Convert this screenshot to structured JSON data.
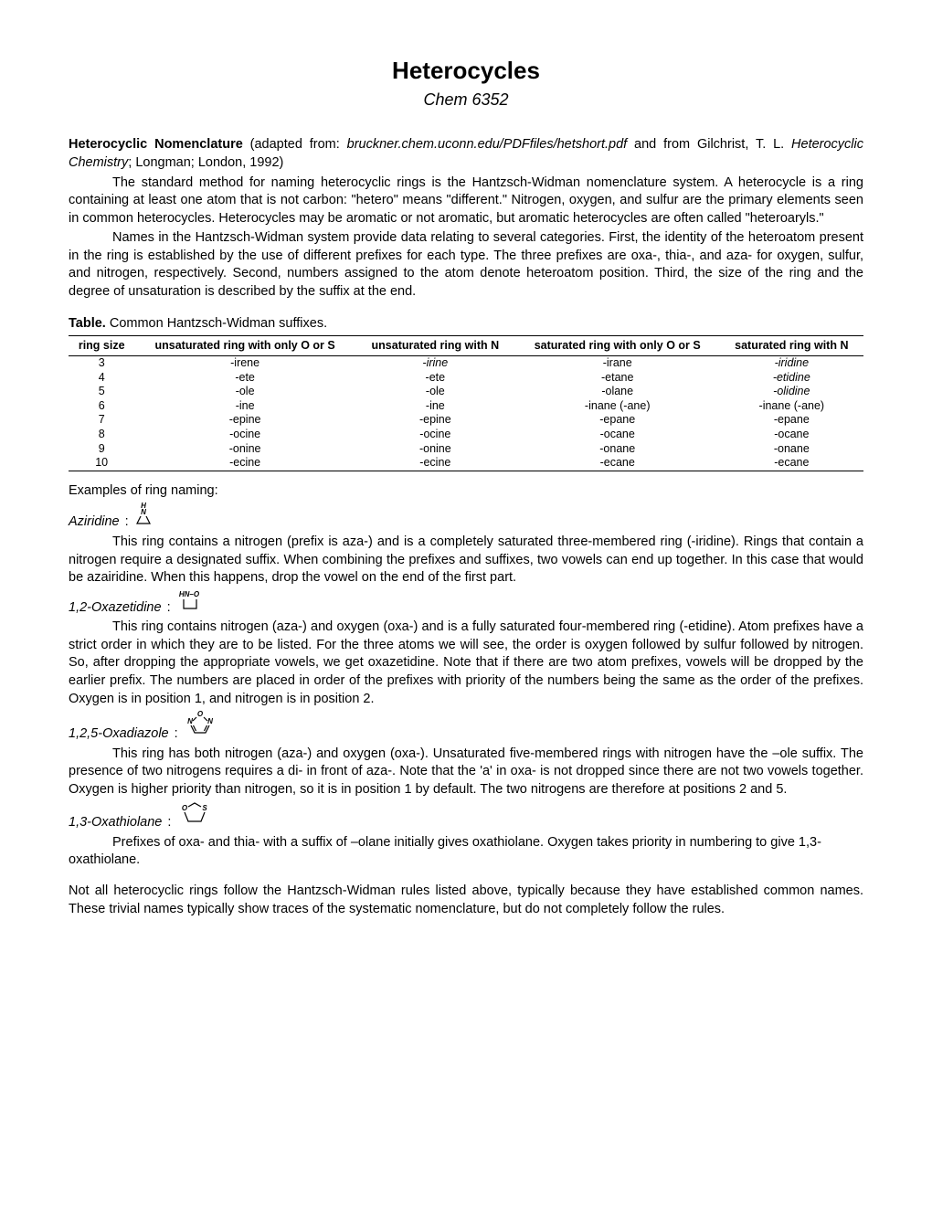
{
  "title": "Heterocycles",
  "course": "Chem 6352",
  "intro": {
    "bold_lead": "Heterocyclic Nomenclature",
    "adapted": " (adapted from: ",
    "src1": "bruckner.chem.uconn.edu/PDFfiles/hetshort.pdf",
    "mid": " and from Gilchrist, T. L. ",
    "src2": "Heterocyclic Chemistry",
    "tail": "; Longman; London, 1992)"
  },
  "para1": "The standard method for naming heterocyclic rings is the Hantzsch-Widman nomenclature system. A heterocycle is a ring containing at least one atom that is not carbon: \"hetero\" means \"different.\" Nitrogen, oxygen, and sulfur are the primary elements seen in common heterocycles. Heterocycles may be aromatic or not aromatic, but aromatic heterocycles are often called \"heteroaryls.\"",
  "para2": "Names in the Hantzsch-Widman system provide data relating to several categories. First, the identity of the heteroatom present in the ring is established by the use of different prefixes for each type. The three prefixes are oxa-, thia-, and aza- for oxygen, sulfur, and nitrogen, respectively. Second, numbers assigned to the atom denote heteroatom position. Third, the size of the ring and the degree of unsaturation is described by the suffix at the end.",
  "table_title_bold": "Table.",
  "table_title_rest": " Common Hantzsch-Widman suffixes.",
  "table": {
    "headers": [
      "ring size",
      "unsaturated ring with only O or S",
      "unsaturated ring with N",
      "saturated ring with only O or S",
      "saturated ring with N"
    ],
    "rows": [
      {
        "size": "3",
        "c1": "-irene",
        "c2": "-irine",
        "c2i": true,
        "c3": "-irane",
        "c4": "-iridine",
        "c4i": true
      },
      {
        "size": "4",
        "c1": "-ete",
        "c2": "-ete",
        "c3": "-etane",
        "c4": "-etidine",
        "c4i": true
      },
      {
        "size": "5",
        "c1": "-ole",
        "c2": "-ole",
        "c3": "-olane",
        "c4": "-olidine",
        "c4i": true
      },
      {
        "size": "6",
        "c1": "-ine",
        "c2": "-ine",
        "c3": "-inane (-ane)",
        "c4": "-inane (-ane)"
      },
      {
        "size": "7",
        "c1": "-epine",
        "c2": "-epine",
        "c3": "-epane",
        "c4": "-epane"
      },
      {
        "size": "8",
        "c1": "-ocine",
        "c2": "-ocine",
        "c3": "-ocane",
        "c4": "-ocane"
      },
      {
        "size": "9",
        "c1": "-onine",
        "c2": "-onine",
        "c3": "-onane",
        "c4": "-onane"
      },
      {
        "size": "10",
        "c1": "-ecine",
        "c2": "-ecine",
        "c3": "-ecane",
        "c4": "-ecane"
      }
    ]
  },
  "examples_heading": "Examples of ring naming:",
  "ex1": {
    "name": "Aziridine",
    "text": "This ring contains a nitrogen (prefix is aza-) and is a completely saturated three-membered ring (-iridine). Rings that contain a nitrogen require a designated suffix. When combining the prefixes and suffixes, two vowels can end up together. In this case that would be azairidine. When this happens, drop the vowel on the end of the first part."
  },
  "ex2": {
    "name": "1,2-Oxazetidine",
    "label": "HN–O",
    "text": "This ring contains nitrogen (aza-) and oxygen (oxa-) and is a fully saturated four-membered ring (-etidine). Atom prefixes have a strict order in which they are to be listed. For the three atoms we will see, the order is oxygen followed by sulfur followed by nitrogen. So, after dropping the appropriate vowels, we get oxazetidine. Note that if there are two atom prefixes, vowels will be dropped by the earlier prefix. The numbers are placed in order of the prefixes with priority of the numbers being the same as the order of the prefixes. Oxygen is in position 1, and nitrogen is in position 2."
  },
  "ex3": {
    "name": "1,2,5-Oxadiazole",
    "text": "This ring has both nitrogen (aza-) and oxygen (oxa-). Unsaturated five-membered rings with nitrogen have the –ole suffix. The presence of two nitrogens requires a di- in front of aza-. Note that the 'a' in oxa- is not dropped since there are not two vowels together. Oxygen is higher priority than nitrogen, so it is in position 1 by default. The two nitrogens are therefore at positions 2 and 5."
  },
  "ex4": {
    "name": "1,3-Oxathiolane",
    "text": "Prefixes of oxa- and thia- with a suffix of –olane initially gives oxathiolane. Oxygen takes priority in numbering to give 1,3-oxathiolane."
  },
  "final": "Not all heterocyclic rings follow the Hantzsch-Widman rules listed above, typically because they have established common names. These trivial names typically show traces of the systematic nomenclature, but do not completely follow the rules."
}
